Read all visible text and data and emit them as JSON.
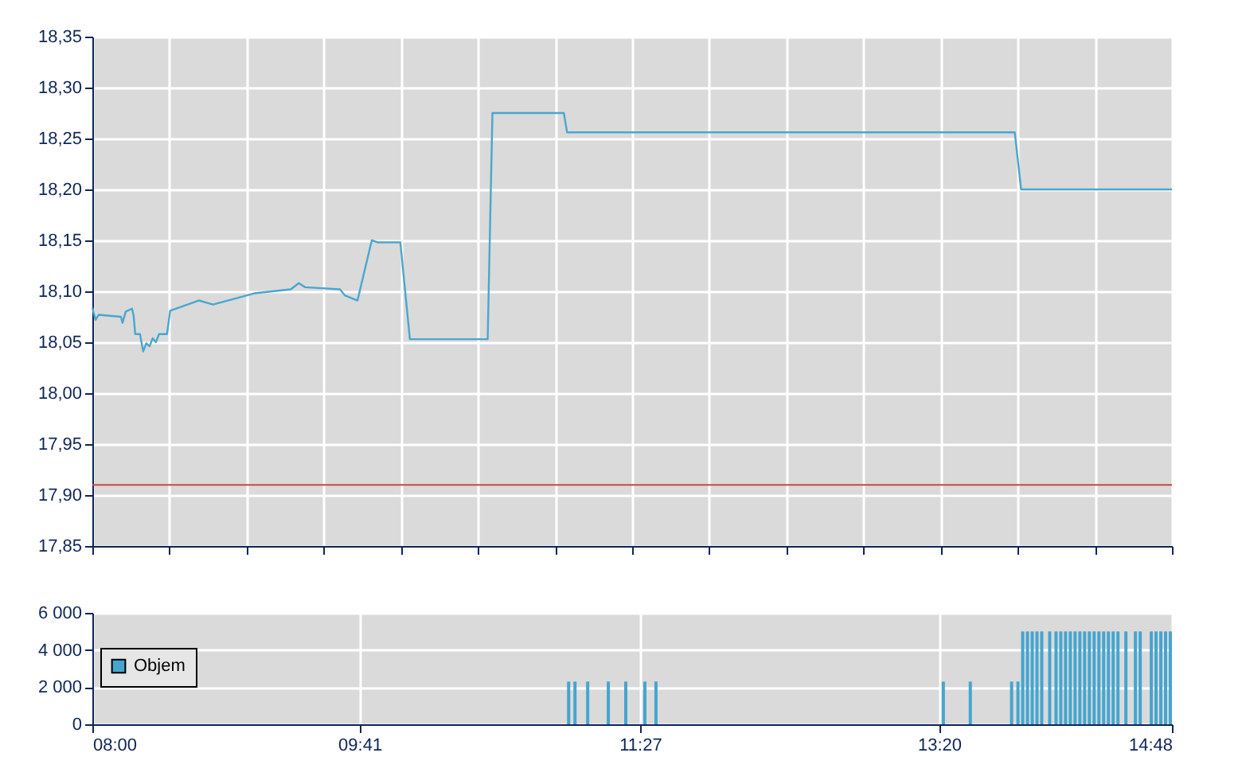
{
  "chart_data": [
    {
      "type": "line",
      "xlim": [
        8,
        14.8
      ],
      "ylim": [
        17.85,
        18.35
      ],
      "xticks": [
        {
          "value": 8,
          "label": null
        },
        {
          "value": 8.486,
          "label": null
        },
        {
          "value": 8.971,
          "label": null
        },
        {
          "value": 9.457,
          "label": null
        },
        {
          "value": 9.943,
          "label": null
        },
        {
          "value": 10.429,
          "label": null
        },
        {
          "value": 10.914,
          "label": null
        },
        {
          "value": 11.4,
          "label": null
        },
        {
          "value": 11.886,
          "label": null
        },
        {
          "value": 12.371,
          "label": null
        },
        {
          "value": 12.857,
          "label": null
        },
        {
          "value": 13.343,
          "label": null
        },
        {
          "value": 13.829,
          "label": null
        },
        {
          "value": 14.314,
          "label": null
        },
        {
          "value": 14.8,
          "label": null
        }
      ],
      "yticks": [
        {
          "value": 17.85,
          "label": "17,85"
        },
        {
          "value": 17.9,
          "label": "17,90"
        },
        {
          "value": 17.95,
          "label": "17,95"
        },
        {
          "value": 18.0,
          "label": "18,00"
        },
        {
          "value": 18.05,
          "label": "18,05"
        },
        {
          "value": 18.1,
          "label": "18,10"
        },
        {
          "value": 18.15,
          "label": "18,15"
        },
        {
          "value": 18.2,
          "label": "18,20"
        },
        {
          "value": 18.25,
          "label": "18,25"
        },
        {
          "value": 18.3,
          "label": "18,30"
        },
        {
          "value": 18.35,
          "label": "18,35"
        }
      ],
      "tick_labels": "y",
      "grid": true,
      "ref_lines": [
        {
          "axis": "y",
          "value": 17.91,
          "color": "#cc4444"
        }
      ],
      "series": [
        {
          "color": "#4aa6cf",
          "x": [
            8.0,
            8.02,
            8.04,
            8.18,
            8.19,
            8.21,
            8.25,
            8.26,
            8.27,
            8.3,
            8.32,
            8.34,
            8.36,
            8.38,
            8.4,
            8.42,
            8.47,
            8.49,
            8.67,
            8.76,
            9.02,
            9.25,
            9.3,
            9.34,
            9.56,
            9.59,
            9.67,
            9.76,
            9.8,
            9.94,
            10.0,
            10.49,
            10.52,
            10.97,
            10.99,
            13.81,
            13.85,
            14.8
          ],
          "values": [
            18.084,
            18.072,
            18.077,
            18.075,
            18.069,
            18.08,
            18.083,
            18.076,
            18.058,
            18.058,
            18.041,
            18.049,
            18.046,
            18.054,
            18.05,
            18.058,
            18.058,
            18.081,
            18.091,
            18.087,
            18.098,
            18.102,
            18.108,
            18.104,
            18.102,
            18.096,
            18.091,
            18.15,
            18.148,
            18.148,
            18.053,
            18.053,
            18.275,
            18.275,
            18.256,
            18.256,
            18.2,
            18.2
          ]
        }
      ]
    },
    {
      "type": "bar",
      "xlim": [
        8,
        14.8
      ],
      "ylim": [
        0,
        6000
      ],
      "xticks": [
        {
          "value": 8,
          "label": "08:00"
        },
        {
          "value": 9.683,
          "label": "09:41"
        },
        {
          "value": 11.45,
          "label": "11:27"
        },
        {
          "value": 13.333,
          "label": "13:20"
        },
        {
          "value": 14.8,
          "label": "14:48"
        }
      ],
      "yticks": [
        {
          "value": 0,
          "label": "0"
        },
        {
          "value": 2000,
          "label": "2 000"
        },
        {
          "value": 4000,
          "label": "4 000"
        },
        {
          "value": 6000,
          "label": "6 000"
        }
      ],
      "grid": true,
      "legend": "left",
      "series": [
        {
          "name": "Objem",
          "color": "#45a5cf",
          "x": [
            11.0,
            11.04,
            11.12,
            11.25,
            11.36,
            11.48,
            11.55,
            13.36,
            13.53,
            13.79,
            13.83,
            13.86,
            13.89,
            13.92,
            13.95,
            13.98,
            14.03,
            14.07,
            14.1,
            14.13,
            14.16,
            14.19,
            14.22,
            14.25,
            14.28,
            14.31,
            14.34,
            14.37,
            14.4,
            14.43,
            14.46,
            14.51,
            14.57,
            14.6,
            14.67,
            14.7,
            14.73,
            14.76,
            14.79
          ],
          "values": [
            2300,
            2300,
            2300,
            2300,
            2300,
            2300,
            2300,
            2300,
            2300,
            2300,
            2300,
            5000,
            5000,
            5000,
            5000,
            5000,
            5000,
            5000,
            5000,
            5000,
            5000,
            5000,
            5000,
            5000,
            5000,
            5000,
            5000,
            5000,
            5000,
            5000,
            5000,
            5000,
            5000,
            5000,
            5000,
            5000,
            5000,
            5000,
            5000
          ]
        }
      ]
    }
  ]
}
